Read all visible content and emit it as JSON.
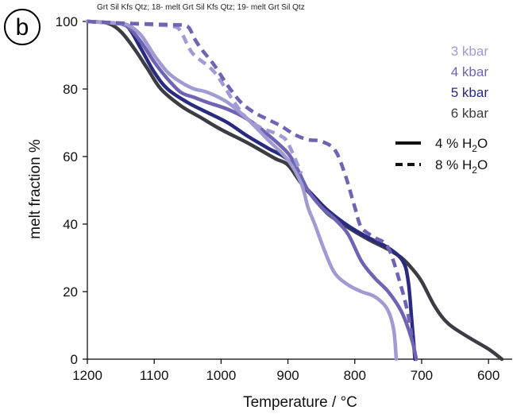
{
  "header": {
    "caption": "Grt Sil Kfs Qtz; 18- melt Grt Sil Kfs Qtz; 19- melt Grt Sil Qtz",
    "panel_label": "b"
  },
  "chart_data": {
    "type": "line",
    "title": "",
    "xlabel": "Temperature / °C",
    "ylabel": "melt fraction %",
    "xlim": [
      1200,
      570
    ],
    "ylim": [
      0,
      100
    ],
    "x_reversed": true,
    "xticks": [
      1200,
      1100,
      1000,
      900,
      800,
      700,
      600
    ],
    "yticks": [
      0,
      20,
      40,
      60,
      80,
      100
    ],
    "grid": false,
    "legend_position": "top-right",
    "legend": {
      "pressure_entries": [
        {
          "label": "3 kbar",
          "color": "#a09bd2"
        },
        {
          "label": "4 kbar",
          "color": "#6f63b4"
        },
        {
          "label": "5 kbar",
          "color": "#2a2a80"
        },
        {
          "label": "6 kbar",
          "color": "#3c3c44"
        }
      ],
      "style_entries": [
        {
          "label_prefix": "4 % H",
          "subscript": "2",
          "label_suffix": "O",
          "style": "solid"
        },
        {
          "label_prefix": "8 % H",
          "subscript": "2",
          "label_suffix": "O",
          "style": "dashed"
        }
      ]
    },
    "series": [
      {
        "pressure": "6 kbar",
        "water": "4 % H2O",
        "color": "#3c3c44",
        "style": "solid",
        "points": [
          [
            1200,
            100
          ],
          [
            1170,
            99.5
          ],
          [
            1150,
            97
          ],
          [
            1130,
            92
          ],
          [
            1110,
            86
          ],
          [
            1090,
            80
          ],
          [
            1060,
            75
          ],
          [
            1030,
            71.5
          ],
          [
            1000,
            68
          ],
          [
            960,
            64
          ],
          [
            920,
            59.5
          ],
          [
            900,
            57.5
          ],
          [
            880,
            52
          ],
          [
            860,
            47.5
          ],
          [
            840,
            43
          ],
          [
            810,
            39
          ],
          [
            780,
            35.5
          ],
          [
            750,
            32.5
          ],
          [
            730,
            30
          ],
          [
            715,
            27
          ],
          [
            700,
            23
          ],
          [
            680,
            15.5
          ],
          [
            660,
            10.5
          ],
          [
            630,
            6.5
          ],
          [
            600,
            3
          ],
          [
            580,
            0
          ]
        ]
      },
      {
        "pressure": "5 kbar",
        "water": "4 % H2O",
        "color": "#2a2a80",
        "style": "solid",
        "points": [
          [
            1200,
            100
          ],
          [
            1160,
            99.5
          ],
          [
            1140,
            98.5
          ],
          [
            1120,
            92
          ],
          [
            1100,
            85
          ],
          [
            1080,
            80
          ],
          [
            1050,
            76
          ],
          [
            1020,
            73
          ],
          [
            990,
            70
          ],
          [
            960,
            66
          ],
          [
            930,
            62.5
          ],
          [
            900,
            59
          ],
          [
            880,
            52.5
          ],
          [
            860,
            48
          ],
          [
            840,
            44
          ],
          [
            810,
            39.5
          ],
          [
            780,
            36
          ],
          [
            750,
            33
          ],
          [
            728,
            29
          ],
          [
            720,
            23
          ],
          [
            715,
            12
          ],
          [
            712,
            5
          ],
          [
            710,
            0
          ]
        ]
      },
      {
        "pressure": "4 kbar",
        "water": "4 % H2O",
        "color": "#6f63b4",
        "style": "solid",
        "points": [
          [
            1200,
            100
          ],
          [
            1160,
            99.5
          ],
          [
            1140,
            98.5
          ],
          [
            1120,
            94
          ],
          [
            1100,
            88
          ],
          [
            1080,
            83
          ],
          [
            1060,
            79
          ],
          [
            1040,
            77.5
          ],
          [
            1020,
            76
          ],
          [
            990,
            74
          ],
          [
            960,
            71
          ],
          [
            930,
            66.5
          ],
          [
            900,
            61
          ],
          [
            885,
            56
          ],
          [
            870,
            50
          ],
          [
            850,
            45
          ],
          [
            830,
            41.5
          ],
          [
            810,
            37
          ],
          [
            790,
            29
          ],
          [
            770,
            24
          ],
          [
            750,
            20
          ],
          [
            730,
            14
          ],
          [
            715,
            6
          ],
          [
            708,
            0
          ]
        ]
      },
      {
        "pressure": "3 kbar",
        "water": "4 % H2O",
        "color": "#a09bd2",
        "style": "solid",
        "points": [
          [
            1200,
            100
          ],
          [
            1160,
            99.5
          ],
          [
            1140,
            99
          ],
          [
            1120,
            96
          ],
          [
            1100,
            90
          ],
          [
            1080,
            85
          ],
          [
            1060,
            82
          ],
          [
            1040,
            80
          ],
          [
            1020,
            79
          ],
          [
            990,
            76
          ],
          [
            960,
            71
          ],
          [
            930,
            65
          ],
          [
            900,
            59
          ],
          [
            880,
            52
          ],
          [
            870,
            45
          ],
          [
            860,
            40
          ],
          [
            845,
            32
          ],
          [
            830,
            25.5
          ],
          [
            810,
            22
          ],
          [
            790,
            20
          ],
          [
            770,
            18.5
          ],
          [
            752,
            15
          ],
          [
            742,
            9
          ],
          [
            738,
            0
          ]
        ]
      },
      {
        "pressure": "3 kbar",
        "water": "8 % H2O",
        "color": "#a09bd2",
        "style": "dashed",
        "points": [
          [
            1200,
            100
          ],
          [
            1150,
            99.5
          ],
          [
            1100,
            99
          ],
          [
            1070,
            98.5
          ],
          [
            1060,
            97
          ],
          [
            1050,
            93
          ],
          [
            1040,
            90
          ],
          [
            1010,
            85
          ],
          [
            980,
            76
          ],
          [
            960,
            71
          ],
          [
            940,
            68.5
          ],
          [
            920,
            67
          ],
          [
            910,
            66
          ],
          [
            900,
            64
          ],
          [
            880,
            55
          ]
        ]
      },
      {
        "pressure": "4 kbar",
        "water": "8 % H2O",
        "color": "#6f63b4",
        "style": "dashed",
        "points": [
          [
            1200,
            100
          ],
          [
            1150,
            99.5
          ],
          [
            1100,
            99.2
          ],
          [
            1070,
            99
          ],
          [
            1050,
            98.5
          ],
          [
            1040,
            95
          ],
          [
            1030,
            92
          ],
          [
            1010,
            87
          ],
          [
            990,
            81
          ],
          [
            970,
            76
          ],
          [
            950,
            73
          ],
          [
            930,
            71
          ],
          [
            910,
            69
          ],
          [
            890,
            66.5
          ],
          [
            870,
            65
          ],
          [
            850,
            64.5
          ],
          [
            830,
            62
          ],
          [
            815,
            55
          ],
          [
            800,
            45
          ],
          [
            790,
            39
          ],
          [
            770,
            36
          ],
          [
            750,
            33
          ],
          [
            730,
            21
          ],
          [
            720,
            13
          ],
          [
            715,
            7
          ]
        ]
      }
    ]
  }
}
